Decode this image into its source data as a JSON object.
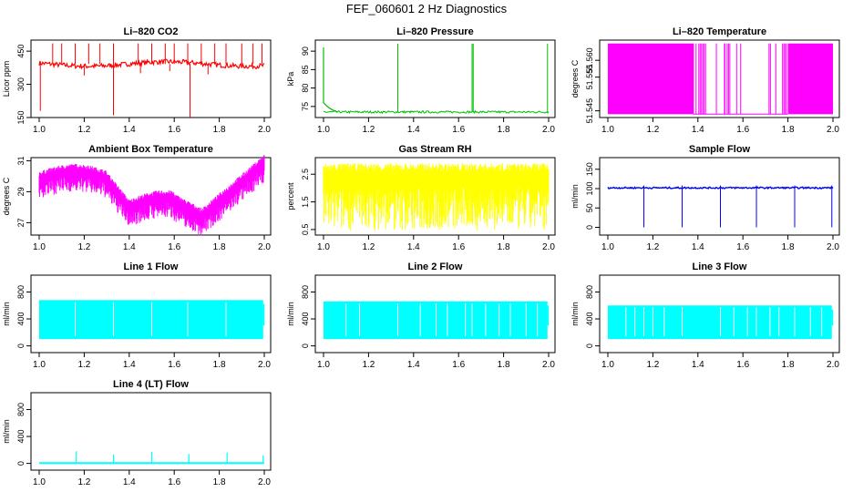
{
  "figure_title": "FEF_060601  2 Hz Diagnostics",
  "chart_data": [
    {
      "type": "line",
      "title": "Li–820 CO2",
      "ylabel": "Licor ppm",
      "color": "#ff0000",
      "x": [
        1.0,
        2.0
      ],
      "ylim": [
        150,
        500
      ],
      "yticks": [
        150,
        300,
        450
      ],
      "xticks": [
        "1.0",
        "1.2",
        "1.4",
        "1.6",
        "1.8",
        "2.0"
      ],
      "shape": "co2",
      "baseline": 392
    },
    {
      "type": "line",
      "title": "Li–820 Pressure",
      "ylabel": "kPa",
      "color": "#00c000",
      "x": [
        1.0,
        2.0
      ],
      "ylim": [
        72,
        93
      ],
      "yticks": [
        75,
        80,
        85,
        90
      ],
      "xticks": [
        "1.0",
        "1.2",
        "1.4",
        "1.6",
        "1.8",
        "2.0"
      ],
      "shape": "pressure",
      "baseline": 73.5
    },
    {
      "type": "line",
      "title": "Li–820 Temperature",
      "ylabel": "degrees C",
      "color": "#ff00ff",
      "x": [
        1.0,
        2.0
      ],
      "ylim": [
        51.543,
        51.566
      ],
      "yticks": [
        "51.545",
        "51.555",
        "51.560"
      ],
      "ytickvals": [
        51.545,
        51.555,
        51.56
      ],
      "xticks": [
        "1.0",
        "1.2",
        "1.4",
        "1.6",
        "1.8",
        "2.0"
      ],
      "shape": "temp"
    },
    {
      "type": "line",
      "title": "Ambient Box Temperature",
      "ylabel": "degrees C",
      "color": "#ff00ff",
      "x": [
        1.0,
        2.0
      ],
      "ylim": [
        26.2,
        31.2
      ],
      "yticks": [
        27,
        29,
        31
      ],
      "xticks": [
        "1.0",
        "1.2",
        "1.4",
        "1.6",
        "1.8",
        "2.0"
      ],
      "shape": "ambient"
    },
    {
      "type": "line",
      "title": "Gas Stream RH",
      "ylabel": "percent",
      "color": "#ffff00",
      "x": [
        1.0,
        2.0
      ],
      "ylim": [
        0.3,
        3.1
      ],
      "yticks": [
        "0.5",
        "1.5",
        "2.5"
      ],
      "ytickvals": [
        0.5,
        1.5,
        2.5
      ],
      "xticks": [
        "1.0",
        "1.2",
        "1.4",
        "1.6",
        "1.8",
        "2.0"
      ],
      "shape": "rh"
    },
    {
      "type": "line",
      "title": "Sample Flow",
      "ylabel": "ml/min",
      "color": "#0000ff",
      "x": [
        1.0,
        2.0
      ],
      "ylim": [
        -20,
        180
      ],
      "yticks": [
        0,
        50,
        100,
        150
      ],
      "xticks": [
        "1.0",
        "1.2",
        "1.4",
        "1.6",
        "1.8",
        "2.0"
      ],
      "shape": "sample",
      "baseline": 102
    },
    {
      "type": "line",
      "title": "Line 1 Flow",
      "ylabel": "ml/min",
      "color": "#00ffff",
      "x": [
        1.0,
        2.0
      ],
      "ylim": [
        -100,
        1050
      ],
      "yticks": [
        0,
        400,
        800
      ],
      "xticks": [
        "1.0",
        "1.2",
        "1.4",
        "1.6",
        "1.8",
        "2.0"
      ],
      "shape": "band",
      "band": [
        100,
        680
      ],
      "gaps": [
        1.16,
        1.33,
        1.5,
        1.66,
        1.83
      ]
    },
    {
      "type": "line",
      "title": "Line 2 Flow",
      "ylabel": "ml/min",
      "color": "#00ffff",
      "x": [
        1.0,
        2.0
      ],
      "ylim": [
        -100,
        1050
      ],
      "yticks": [
        0,
        400,
        800
      ],
      "xticks": [
        "1.0",
        "1.2",
        "1.4",
        "1.6",
        "1.8",
        "2.0"
      ],
      "shape": "band",
      "band": [
        100,
        660
      ],
      "gaps": [
        1.1,
        1.16,
        1.33,
        1.43,
        1.5,
        1.55,
        1.63,
        1.66,
        1.72,
        1.78,
        1.83,
        1.9,
        1.95
      ]
    },
    {
      "type": "line",
      "title": "Line 3 Flow",
      "ylabel": "ml/min",
      "color": "#00ffff",
      "x": [
        1.0,
        2.0
      ],
      "ylim": [
        -100,
        1050
      ],
      "yticks": [
        0,
        400,
        800
      ],
      "xticks": [
        "1.0",
        "1.2",
        "1.4",
        "1.6",
        "1.8",
        "2.0"
      ],
      "shape": "band",
      "band": [
        100,
        600
      ],
      "gaps": [
        1.08,
        1.12,
        1.16,
        1.2,
        1.25,
        1.33,
        1.5,
        1.56,
        1.62,
        1.66,
        1.72,
        1.76,
        1.83,
        1.9,
        1.95
      ]
    },
    {
      "type": "line",
      "title": "Line 4 (LT) Flow",
      "ylabel": "ml/min",
      "color": "#00ffff",
      "x": [
        1.0,
        2.0
      ],
      "ylim": [
        -100,
        1050
      ],
      "yticks": [
        0,
        400,
        800
      ],
      "xticks": [
        "1.0",
        "1.2",
        "1.4",
        "1.6",
        "1.8",
        "2.0"
      ],
      "shape": "spikes",
      "baseline": 5,
      "spikes": [
        [
          1.165,
          180
        ],
        [
          1.33,
          130
        ],
        [
          1.5,
          170
        ],
        [
          1.665,
          140
        ],
        [
          1.835,
          160
        ],
        [
          1.995,
          120
        ]
      ]
    }
  ]
}
